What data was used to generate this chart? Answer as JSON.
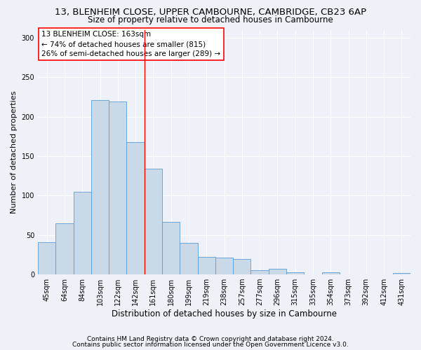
{
  "title_line1": "13, BLENHEIM CLOSE, UPPER CAMBOURNE, CAMBRIDGE, CB23 6AP",
  "title_line2": "Size of property relative to detached houses in Cambourne",
  "xlabel": "Distribution of detached houses by size in Cambourne",
  "ylabel": "Number of detached properties",
  "categories": [
    "45sqm",
    "64sqm",
    "84sqm",
    "103sqm",
    "122sqm",
    "142sqm",
    "161sqm",
    "180sqm",
    "199sqm",
    "219sqm",
    "238sqm",
    "257sqm",
    "277sqm",
    "296sqm",
    "315sqm",
    "335sqm",
    "354sqm",
    "373sqm",
    "392sqm",
    "412sqm",
    "431sqm"
  ],
  "values": [
    41,
    65,
    105,
    221,
    219,
    168,
    134,
    67,
    40,
    22,
    21,
    20,
    5,
    7,
    3,
    0,
    3,
    0,
    0,
    0,
    2
  ],
  "bar_color": "#c9d9e8",
  "bar_edge_color": "#5b9bd5",
  "vline_color": "red",
  "vline_x": 5.5,
  "annotation_line1": "13 BLENHEIM CLOSE: 163sqm",
  "annotation_line2": "← 74% of detached houses are smaller (815)",
  "annotation_line3": "26% of semi-detached houses are larger (289) →",
  "ylim": [
    0,
    310
  ],
  "yticks": [
    0,
    50,
    100,
    150,
    200,
    250,
    300
  ],
  "footer_line1": "Contains HM Land Registry data © Crown copyright and database right 2024.",
  "footer_line2": "Contains public sector information licensed under the Open Government Licence v3.0.",
  "background_color": "#eef2f8",
  "plot_background_color": "#eef2f8",
  "grid_color": "#ffffff",
  "title_fontsize": 9.5,
  "subtitle_fontsize": 8.5,
  "axis_label_fontsize": 8,
  "tick_fontsize": 7,
  "annotation_fontsize": 7.5,
  "footer_fontsize": 6.5
}
